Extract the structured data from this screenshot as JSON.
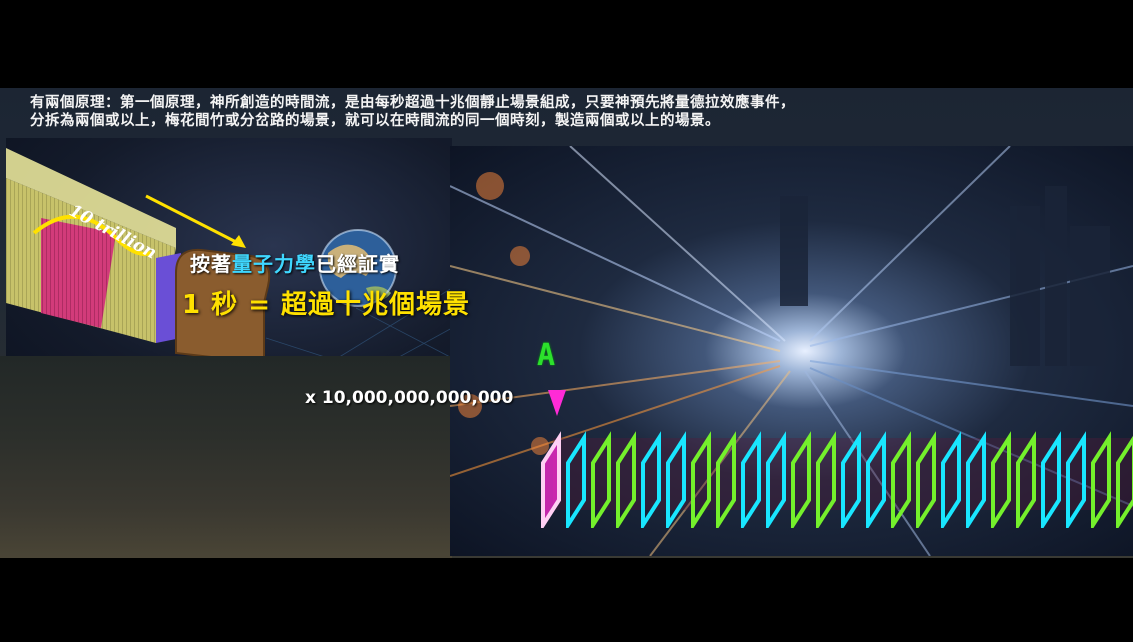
{
  "caption": {
    "line1": "有兩個原理：第一個原理，神所創造的時間流，是由每秒超過十兆個靜止場景組成，只要神預先將量德拉效應事件，",
    "line2": "分拆為兩個或以上，梅花間竹或分岔路的場景，就可以在時間流的同一個時刻，製造兩個或以上的場景。"
  },
  "headline": {
    "prefix": "按著",
    "highlight": "量子力學",
    "suffix": "已經証實",
    "equation": "1 秒 = 超過十兆個場景"
  },
  "diagram": {
    "bread_label": "10 trillion",
    "multiplier": "x 10,000,000,000,000",
    "marker_label": "A"
  },
  "colors": {
    "caption_text": "#f4f4f4",
    "highlight_cyan": "#3fd7ff",
    "equation_yellow": "#ffe100",
    "marker_green": "#2ce02c",
    "marker_pink": "#ff2bd6",
    "frame_cyan": "#19e6ff",
    "frame_green": "#74f02c"
  }
}
